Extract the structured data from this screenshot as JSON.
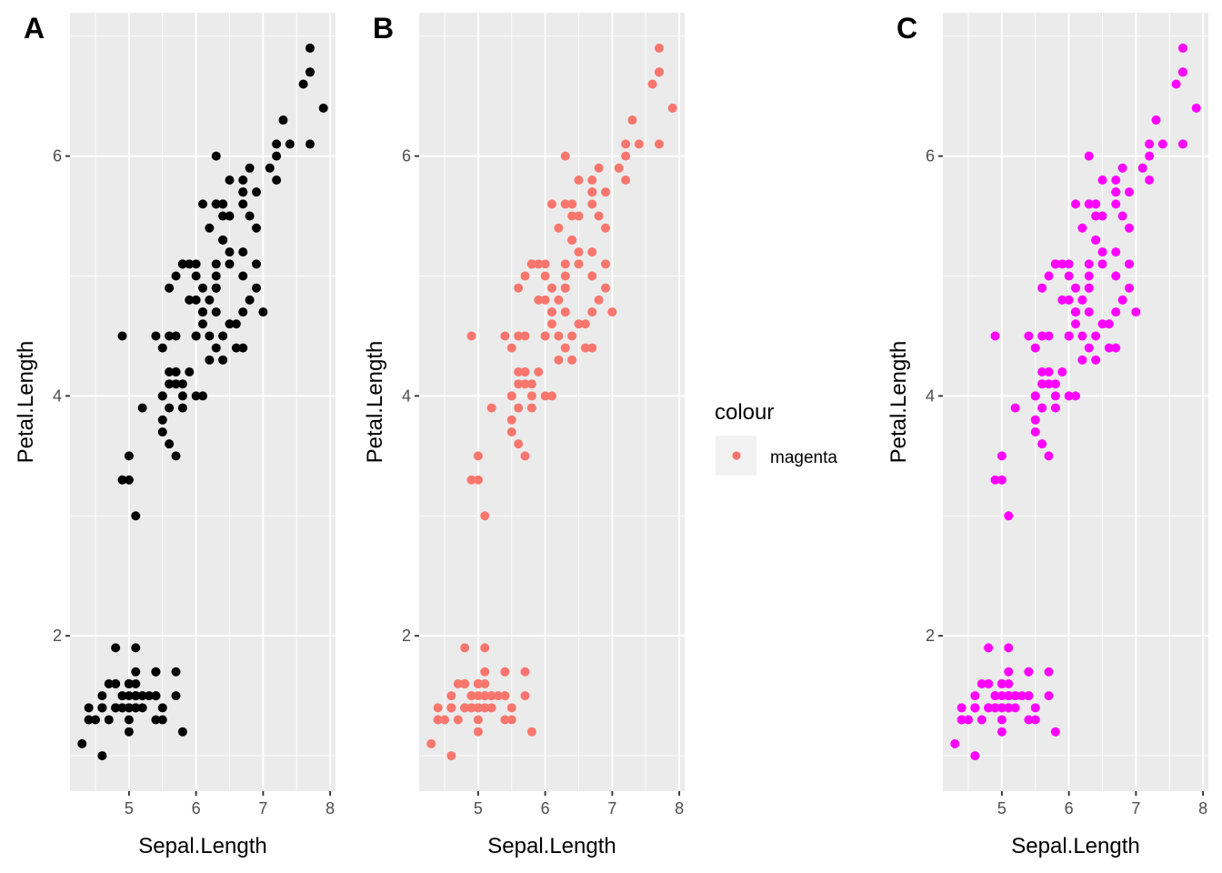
{
  "chart_data": [
    {
      "type": "scatter",
      "panel_tag": "A",
      "xlabel": "Sepal.Length",
      "ylabel": "Petal.Length",
      "xlim": [
        4.12,
        8.08
      ],
      "ylim": [
        0.705,
        7.195
      ],
      "xticks": [
        5,
        6,
        7,
        8
      ],
      "yticks": [
        2,
        4,
        6
      ],
      "grid": true,
      "point_color": "#000000",
      "legend": null
    },
    {
      "type": "scatter",
      "panel_tag": "B",
      "xlabel": "Sepal.Length",
      "ylabel": "Petal.Length",
      "xlim": [
        4.12,
        8.08
      ],
      "ylim": [
        0.705,
        7.195
      ],
      "xticks": [
        5,
        6,
        7,
        8
      ],
      "yticks": [
        2,
        4,
        6
      ],
      "grid": true,
      "point_color": "#F8766D",
      "legend": {
        "title": "colour",
        "entries": [
          "magenta"
        ],
        "placement": "right"
      }
    },
    {
      "type": "scatter",
      "panel_tag": "C",
      "xlabel": "Sepal.Length",
      "ylabel": "Petal.Length",
      "xlim": [
        4.12,
        8.08
      ],
      "ylim": [
        0.705,
        7.195
      ],
      "xticks": [
        5,
        6,
        7,
        8
      ],
      "yticks": [
        2,
        4,
        6
      ],
      "grid": true,
      "point_color": "#FF00FF",
      "legend": null
    }
  ],
  "series": {
    "x": [
      5.1,
      4.9,
      4.7,
      4.6,
      5.0,
      5.4,
      4.6,
      5.0,
      4.4,
      4.9,
      5.4,
      4.8,
      4.8,
      4.3,
      5.8,
      5.7,
      5.4,
      5.1,
      5.7,
      5.1,
      5.4,
      5.1,
      4.6,
      5.1,
      4.8,
      5.0,
      5.0,
      5.2,
      5.2,
      4.7,
      4.8,
      5.4,
      5.2,
      5.5,
      4.9,
      5.0,
      5.5,
      4.9,
      4.4,
      5.1,
      5.0,
      4.5,
      4.4,
      5.0,
      5.1,
      4.8,
      5.1,
      4.6,
      5.3,
      5.0,
      7.0,
      6.4,
      6.9,
      5.5,
      6.5,
      5.7,
      6.3,
      4.9,
      6.6,
      5.2,
      5.0,
      5.9,
      6.0,
      6.1,
      5.6,
      6.7,
      5.6,
      5.8,
      6.2,
      5.6,
      5.9,
      6.1,
      6.3,
      6.1,
      6.4,
      6.6,
      6.8,
      6.7,
      6.0,
      5.7,
      5.5,
      5.5,
      5.8,
      6.0,
      5.4,
      6.0,
      6.7,
      6.3,
      5.6,
      5.5,
      5.5,
      6.1,
      5.8,
      5.0,
      5.6,
      5.7,
      5.7,
      6.2,
      5.1,
      5.7,
      6.3,
      5.8,
      7.1,
      6.3,
      6.5,
      7.6,
      4.9,
      7.3,
      6.7,
      7.2,
      6.5,
      6.4,
      6.8,
      5.7,
      5.8,
      6.4,
      6.5,
      7.7,
      7.7,
      6.0,
      6.9,
      5.6,
      7.7,
      6.3,
      6.7,
      7.2,
      6.2,
      6.1,
      6.4,
      7.2,
      7.4,
      7.9,
      6.4,
      6.3,
      6.1,
      7.7,
      6.3,
      6.4,
      6.0,
      6.9,
      6.7,
      6.9,
      5.8,
      6.8,
      6.7,
      6.7,
      6.3,
      6.5,
      6.2,
      5.9
    ],
    "y": [
      1.4,
      1.4,
      1.3,
      1.5,
      1.4,
      1.7,
      1.4,
      1.5,
      1.4,
      1.5,
      1.5,
      1.6,
      1.4,
      1.1,
      1.2,
      1.5,
      1.3,
      1.4,
      1.7,
      1.5,
      1.7,
      1.5,
      1.0,
      1.7,
      1.9,
      1.6,
      1.6,
      1.5,
      1.4,
      1.6,
      1.6,
      1.5,
      1.5,
      1.4,
      1.5,
      1.2,
      1.3,
      1.4,
      1.3,
      1.5,
      1.3,
      1.3,
      1.3,
      1.6,
      1.9,
      1.4,
      1.6,
      1.4,
      1.5,
      1.4,
      4.7,
      4.5,
      4.9,
      4.0,
      4.6,
      4.5,
      4.7,
      3.3,
      4.6,
      3.9,
      3.5,
      4.2,
      4.0,
      4.7,
      3.6,
      4.4,
      4.5,
      4.1,
      4.5,
      3.9,
      4.8,
      4.0,
      4.9,
      4.7,
      4.3,
      4.4,
      4.8,
      5.0,
      4.5,
      3.5,
      3.8,
      3.7,
      3.9,
      5.1,
      4.5,
      4.5,
      4.7,
      4.4,
      4.1,
      4.0,
      4.4,
      4.6,
      4.0,
      3.3,
      4.2,
      4.2,
      4.2,
      4.3,
      3.0,
      4.1,
      6.0,
      5.1,
      5.9,
      5.6,
      5.8,
      6.6,
      4.5,
      6.3,
      5.8,
      6.1,
      5.1,
      5.3,
      5.5,
      5.0,
      5.1,
      5.3,
      5.5,
      6.7,
      6.9,
      5.0,
      5.7,
      4.9,
      6.7,
      4.9,
      5.7,
      6.0,
      4.8,
      4.9,
      5.6,
      5.8,
      6.1,
      6.4,
      5.6,
      5.1,
      5.6,
      6.1,
      5.6,
      5.5,
      4.8,
      5.4,
      5.6,
      5.1,
      5.1,
      5.9,
      5.7,
      5.2,
      5.0,
      5.2,
      5.4,
      5.1
    ]
  },
  "theme": {
    "panel_background": "#EBEBEB",
    "grid_major": "#FFFFFF",
    "tick_color": "#333333",
    "legend_key_background": "#F2F2F2"
  }
}
